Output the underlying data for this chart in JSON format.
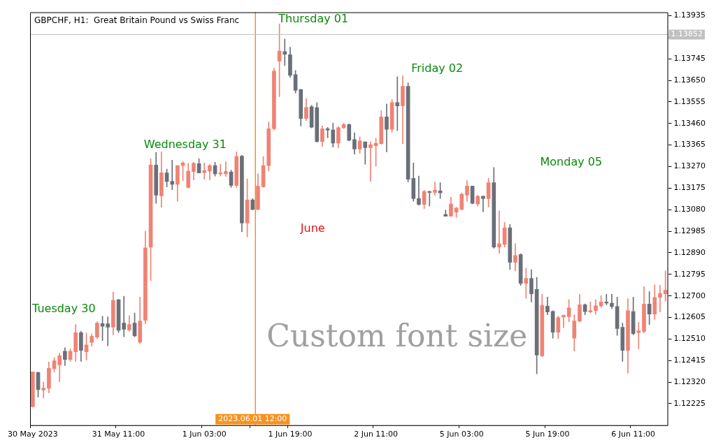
{
  "chart_data": {
    "type": "candlestick",
    "title": "GBPCHF, H1:  Great Britain Pound vs Swiss Franc",
    "categories": [
      "30 May 2023",
      null,
      null,
      null,
      null,
      null,
      null,
      null,
      null,
      null,
      null,
      null,
      null,
      null,
      null,
      null,
      "31 May 11:00",
      null,
      null,
      null,
      null,
      null,
      null,
      null,
      null,
      null,
      null,
      null,
      null,
      null,
      null,
      null,
      "1 Jun 03:00",
      null,
      null,
      null,
      null,
      null,
      null,
      null,
      null,
      "2023.06.01 12:00",
      null,
      null,
      null,
      null,
      null,
      null,
      "1 Jun 19:00",
      null,
      null,
      null,
      null,
      null,
      null,
      null,
      null,
      null,
      null,
      null,
      null,
      null,
      null,
      null,
      "2 Jun 11:00",
      null,
      null,
      null,
      null,
      null,
      null,
      null,
      null,
      null,
      null,
      null,
      null,
      null,
      null,
      null,
      "5 Jun 03:00",
      null,
      null,
      null,
      null,
      null,
      null,
      null,
      null,
      null,
      null,
      null,
      null,
      null,
      null,
      null,
      "5 Jun 19:00",
      null,
      null,
      null,
      null,
      null,
      null,
      null,
      null,
      null,
      null,
      null,
      null,
      null,
      null,
      null,
      "6 Jun 11:00",
      null,
      null,
      null,
      null,
      null,
      null
    ],
    "ohlc": [
      [
        1.12212,
        1.12365,
        1.1221,
        1.12365
      ],
      [
        1.12362,
        1.12365,
        1.12254,
        1.12287
      ],
      [
        1.12285,
        1.12321,
        1.12251,
        1.12294
      ],
      [
        1.12293,
        1.12409,
        1.12273,
        1.12381
      ],
      [
        1.12379,
        1.12427,
        1.12365,
        1.12414
      ],
      [
        1.12396,
        1.12448,
        1.12321,
        1.12436
      ],
      [
        1.12456,
        1.12472,
        1.12393,
        1.1242
      ],
      [
        1.1242,
        1.12466,
        1.12411,
        1.12456
      ],
      [
        1.12454,
        1.12574,
        1.12411,
        1.12538
      ],
      [
        1.12538,
        1.12544,
        1.12411,
        1.1246
      ],
      [
        1.12454,
        1.12536,
        1.12417,
        1.12484
      ],
      [
        1.12495,
        1.12532,
        1.12478,
        1.12522
      ],
      [
        1.12518,
        1.12586,
        1.12512,
        1.1258
      ],
      [
        1.12578,
        1.1261,
        1.12502,
        1.12566
      ],
      [
        1.12577,
        1.12608,
        1.1248,
        1.12562
      ],
      [
        1.12562,
        1.12717,
        1.12528,
        1.1268
      ],
      [
        1.12683,
        1.12685,
        1.12538,
        1.12548
      ],
      [
        1.1258,
        1.12699,
        1.1252,
        1.12553
      ],
      [
        1.1255,
        1.12613,
        1.12544,
        1.12574
      ],
      [
        1.1258,
        1.12625,
        1.1252,
        1.12524
      ],
      [
        1.12496,
        1.12695,
        1.1249,
        1.12589
      ],
      [
        1.12592,
        1.12985,
        1.12577,
        1.12912
      ],
      [
        1.12915,
        1.13304,
        1.12767,
        1.13277
      ],
      [
        1.13277,
        1.13332,
        1.13108,
        1.13144
      ],
      [
        1.13141,
        1.13335,
        1.13091,
        1.13243
      ],
      [
        1.13242,
        1.13259,
        1.1318,
        1.13204
      ],
      [
        1.13205,
        1.13298,
        1.13168,
        1.13192
      ],
      [
        1.13192,
        1.13274,
        1.13117,
        1.13274
      ],
      [
        1.13274,
        1.13292,
        1.13208,
        1.13286
      ],
      [
        1.13178,
        1.13284,
        1.13175,
        1.1325
      ],
      [
        1.13248,
        1.13289,
        1.13211,
        1.13284
      ],
      [
        1.13283,
        1.13304,
        1.13242,
        1.13242
      ],
      [
        1.13243,
        1.13286,
        1.13214,
        1.13253
      ],
      [
        1.1325,
        1.1328,
        1.13211,
        1.13274
      ],
      [
        1.13274,
        1.13289,
        1.13228,
        1.13238
      ],
      [
        1.13238,
        1.1328,
        1.13228,
        1.13243
      ],
      [
        1.13238,
        1.13292,
        1.13226,
        1.13248
      ],
      [
        1.13246,
        1.13254,
        1.13178,
        1.13187
      ],
      [
        1.13187,
        1.13335,
        1.13178,
        1.13314
      ],
      [
        1.13316,
        1.1332,
        1.12982,
        1.13021
      ],
      [
        1.13021,
        1.13216,
        1.1296,
        1.13123
      ],
      [
        1.13123,
        1.13129,
        1.13079,
        1.13081
      ],
      [
        1.13081,
        1.13238,
        1.13079,
        1.13184
      ],
      [
        1.13181,
        1.13314,
        1.13178,
        1.13274
      ],
      [
        1.13274,
        1.13467,
        1.1325,
        1.13437
      ],
      [
        1.13437,
        1.13703,
        1.13431,
        1.13691
      ],
      [
        1.13735,
        1.13899,
        1.13578,
        1.13779
      ],
      [
        1.13777,
        1.13832,
        1.13715,
        1.13765
      ],
      [
        1.13763,
        1.13796,
        1.13663,
        1.13672
      ],
      [
        1.13675,
        1.13694,
        1.13594,
        1.13606
      ],
      [
        1.1361,
        1.1361,
        1.13449,
        1.13482
      ],
      [
        1.13482,
        1.1357,
        1.13473,
        1.13531
      ],
      [
        1.13534,
        1.1354,
        1.1344,
        1.13443
      ],
      [
        1.1353,
        1.13552,
        1.13377,
        1.1338
      ],
      [
        1.1338,
        1.13449,
        1.13359,
        1.13437
      ],
      [
        1.13437,
        1.13443,
        1.13397,
        1.13431
      ],
      [
        1.13431,
        1.13461,
        1.13356,
        1.13373
      ],
      [
        1.13373,
        1.13446,
        1.13353,
        1.13441
      ],
      [
        1.13441,
        1.13461,
        1.13437,
        1.13455
      ],
      [
        1.13455,
        1.13458,
        1.13383,
        1.13386
      ],
      [
        1.13389,
        1.13419,
        1.13325,
        1.13347
      ],
      [
        1.13347,
        1.13401,
        1.13329,
        1.13383
      ],
      [
        1.13379,
        1.13379,
        1.1328,
        1.13353
      ],
      [
        1.13353,
        1.13379,
        1.13204,
        1.13367
      ],
      [
        1.13362,
        1.13395,
        1.13272,
        1.13373
      ],
      [
        1.13371,
        1.13516,
        1.13368,
        1.13489
      ],
      [
        1.13489,
        1.13546,
        1.13335,
        1.13434
      ],
      [
        1.13434,
        1.13566,
        1.13421,
        1.13552
      ],
      [
        1.13552,
        1.13666,
        1.13429,
        1.13537
      ],
      [
        1.13537,
        1.1367,
        1.13371,
        1.13624
      ],
      [
        1.13624,
        1.13639,
        1.13202,
        1.13214
      ],
      [
        1.13218,
        1.13286,
        1.13117,
        1.13129
      ],
      [
        1.13129,
        1.13228,
        1.13099,
        1.13103
      ],
      [
        1.13103,
        1.13166,
        1.13084,
        1.1316
      ],
      [
        1.1316,
        1.13162,
        1.13096,
        1.13156
      ],
      [
        1.13156,
        1.13202,
        1.13144,
        1.13166
      ],
      [
        1.13163,
        1.13199,
        1.13129,
        1.13154
      ],
      [
        1.13059,
        1.13078,
        1.13051,
        1.13051
      ],
      [
        1.13051,
        1.13135,
        1.13051,
        1.13105
      ],
      [
        1.13069,
        1.13091,
        1.13047,
        1.13087
      ],
      [
        1.13081,
        1.13154,
        1.13079,
        1.13148
      ],
      [
        1.13144,
        1.13208,
        1.13117,
        1.13184
      ],
      [
        1.13184,
        1.13184,
        1.13105,
        1.13108
      ],
      [
        1.13105,
        1.13144,
        1.13096,
        1.13139
      ],
      [
        1.13139,
        1.13141,
        1.13071,
        1.13129
      ],
      [
        1.13129,
        1.13218,
        1.13091,
        1.13199
      ],
      [
        1.13199,
        1.13266,
        1.1291,
        1.12915
      ],
      [
        1.12915,
        1.13075,
        1.12888,
        1.1293
      ],
      [
        1.12927,
        1.13024,
        1.12915,
        1.13
      ],
      [
        1.13,
        1.13015,
        1.12816,
        1.12848
      ],
      [
        1.12848,
        1.1293,
        1.1281,
        1.12878
      ],
      [
        1.12882,
        1.12886,
        1.12746,
        1.12755
      ],
      [
        1.12755,
        1.12822,
        1.12689,
        1.12777
      ],
      [
        1.12777,
        1.12816,
        1.12673,
        1.12709
      ],
      [
        1.12729,
        1.12782,
        1.12357,
        1.12439
      ],
      [
        1.12436,
        1.12707,
        1.12432,
        1.12659
      ],
      [
        1.12655,
        1.12695,
        1.12617,
        1.12629
      ],
      [
        1.12632,
        1.12635,
        1.12514,
        1.1254
      ],
      [
        1.1254,
        1.1261,
        1.12512,
        1.12604
      ],
      [
        1.12607,
        1.12617,
        1.1256,
        1.12614
      ],
      [
        1.12608,
        1.12683,
        1.12586,
        1.12647
      ],
      [
        1.12514,
        1.12617,
        1.12457,
        1.12589
      ],
      [
        1.12589,
        1.12707,
        1.12586,
        1.12661
      ],
      [
        1.12661,
        1.12665,
        1.12617,
        1.12631
      ],
      [
        1.12629,
        1.12673,
        1.12625,
        1.12635
      ],
      [
        1.12635,
        1.12683,
        1.12619,
        1.12656
      ],
      [
        1.12656,
        1.12701,
        1.12649,
        1.12673
      ],
      [
        1.12673,
        1.12707,
        1.12661,
        1.12668
      ],
      [
        1.12668,
        1.12707,
        1.12644,
        1.12653
      ],
      [
        1.12653,
        1.12695,
        1.12526,
        1.12556
      ],
      [
        1.12562,
        1.1258,
        1.12411,
        1.1246
      ],
      [
        1.1246,
        1.12689,
        1.12359,
        1.12635
      ],
      [
        1.12631,
        1.12695,
        1.12528,
        1.12534
      ],
      [
        1.12538,
        1.12584,
        1.12466,
        1.12546
      ],
      [
        1.12544,
        1.12741,
        1.12536,
        1.12664
      ],
      [
        1.12664,
        1.12719,
        1.12574,
        1.1262
      ],
      [
        1.1262,
        1.12749,
        1.12596,
        1.12693
      ],
      [
        1.12693,
        1.12746,
        1.12629,
        1.12711
      ],
      [
        1.12709,
        1.1281,
        1.12677,
        1.12725
      ]
    ],
    "colors": [
      "#ef8374",
      "#6a6f78",
      "#ef8374",
      "#ef8374",
      "#ef8374",
      "#ef8374",
      "#6a6f78",
      "#ef8374",
      "#ef8374",
      "#6a6f78",
      "#ef8374",
      "#ef8374",
      "#ef8374",
      "#6a6f78",
      "#6a6f78",
      "#ef8374",
      "#6a6f78",
      "#6a6f78",
      "#ef8374",
      "#6a6f78",
      "#ef8374",
      "#ef8374",
      "#ef8374",
      "#6a6f78",
      "#ef8374",
      "#6a6f78",
      "#6a6f78",
      "#ef8374",
      "#ef8374",
      "#ef8374",
      "#ef8374",
      "#6a6f78",
      "#ef8374",
      "#ef8374",
      "#6a6f78",
      "#ef8374",
      "#ef8374",
      "#6a6f78",
      "#ef8374",
      "#6a6f78",
      "#ef8374",
      "#6a6f78",
      "#ef8374",
      "#ef8374",
      "#ef8374",
      "#ef8374",
      "#ef8374",
      "#6a6f78",
      "#6a6f78",
      "#6a6f78",
      "#6a6f78",
      "#ef8374",
      "#6a6f78",
      "#6a6f78",
      "#ef8374",
      "#6a6f78",
      "#6a6f78",
      "#ef8374",
      "#ef8374",
      "#6a6f78",
      "#6a6f78",
      "#ef8374",
      "#6a6f78",
      "#ef8374",
      "#ef8374",
      "#ef8374",
      "#6a6f78",
      "#ef8374",
      "#6a6f78",
      "#ef8374",
      "#6a6f78",
      "#6a6f78",
      "#6a6f78",
      "#ef8374",
      "#6a6f78",
      "#ef8374",
      "#6a6f78",
      "#6a6f78",
      "#ef8374",
      "#ef8374",
      "#ef8374",
      "#ef8374",
      "#6a6f78",
      "#ef8374",
      "#6a6f78",
      "#ef8374",
      "#6a6f78",
      "#ef8374",
      "#ef8374",
      "#6a6f78",
      "#ef8374",
      "#6a6f78",
      "#ef8374",
      "#6a6f78",
      "#6a6f78",
      "#ef8374",
      "#6a6f78",
      "#6a6f78",
      "#ef8374",
      "#ef8374",
      "#ef8374",
      "#ef8374",
      "#ef8374",
      "#6a6f78",
      "#ef8374",
      "#ef8374",
      "#ef8374",
      "#6a6f78",
      "#6a6f78",
      "#6a6f78",
      "#6a6f78",
      "#ef8374",
      "#6a6f78",
      "#ef8374",
      "#ef8374",
      "#6a6f78",
      "#ef8374",
      "#ef8374",
      "#ef8374"
    ],
    "ylim": [
      1.1213,
      1.1395
    ],
    "yticks": [
      1.13935,
      {
        "value": 1.1384,
        "label": null
      },
      1.13745,
      {
        "value": 1.1365,
        "label": "1.13650"
      },
      1.13555,
      {
        "value": 1.1346,
        "label": "1.13460"
      },
      1.13365,
      {
        "value": 1.1327,
        "label": "1.13270"
      },
      1.13175,
      {
        "value": 1.1308,
        "label": "1.13080"
      },
      1.12985,
      {
        "value": 1.1289,
        "label": "1.12890"
      },
      1.12795,
      {
        "value": 1.127,
        "label": "1.12700"
      },
      1.12605,
      {
        "value": 1.1251,
        "label": "1.12510"
      },
      1.12415,
      {
        "value": 1.1232,
        "label": "1.12320"
      },
      1.12225
    ],
    "ref_lines": [
      {
        "axis": "y",
        "value": 1.13852,
        "label": "1.13852",
        "color": "#c0c0c0"
      },
      {
        "axis": "x",
        "value": "2023.06.01 12:00",
        "color": "#f7931e"
      }
    ],
    "annotations": [
      "Thursday 01",
      "Friday 02",
      "Wednesday 31",
      "Monday 05",
      "June",
      "Custom font size",
      "Tuesday 30"
    ],
    "legend": false,
    "grid": false
  }
}
